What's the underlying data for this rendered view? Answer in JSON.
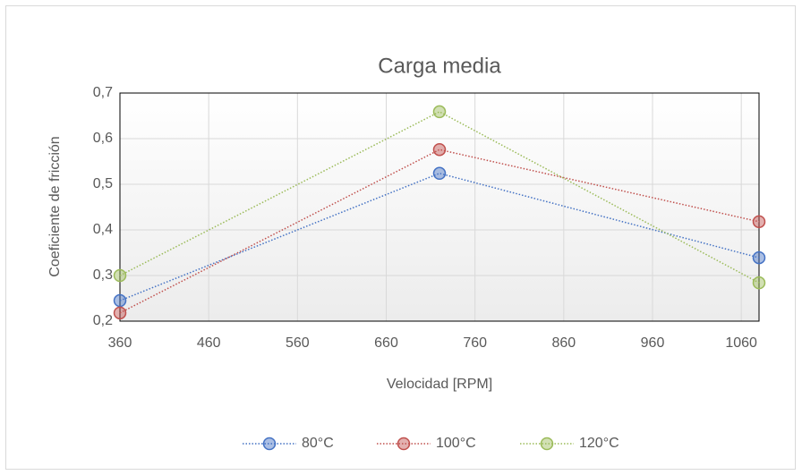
{
  "chart_data": {
    "type": "line",
    "title": "Carga media",
    "x_label": "Velocidad [RPM]",
    "y_label": "Coeficiente de fricción",
    "x": [
      360,
      720,
      1080
    ],
    "series": [
      {
        "name": "80°C",
        "color": "#4472c4",
        "values": [
          0.245,
          0.524,
          0.339
        ]
      },
      {
        "name": "100°C",
        "color": "#c0504d",
        "values": [
          0.218,
          0.576,
          0.418
        ]
      },
      {
        "name": "120°C",
        "color": "#9bbb59",
        "values": [
          0.3,
          0.659,
          0.284
        ]
      }
    ],
    "xlim": [
      360,
      1080
    ],
    "xticks": [
      360,
      460,
      560,
      660,
      760,
      860,
      960,
      1060
    ],
    "ylim": [
      0.2,
      0.7
    ],
    "yticks": [
      {
        "value": 0.2,
        "label": "0,2"
      },
      {
        "value": 0.3,
        "label": "0,3"
      },
      {
        "value": 0.4,
        "label": "0,4"
      },
      {
        "value": 0.5,
        "label": "0,5"
      },
      {
        "value": 0.6,
        "label": "0,6"
      },
      {
        "value": 0.7,
        "label": "0,7"
      }
    ],
    "grid": true,
    "legend": "bottom"
  }
}
